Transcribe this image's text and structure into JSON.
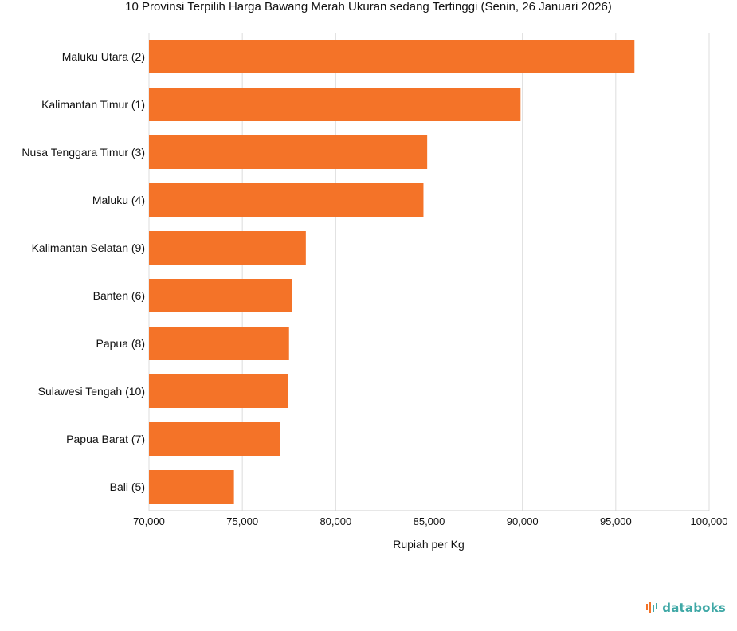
{
  "title": "10 Provinsi Terpilih Harga Bawang Merah Ukuran sedang Tertinggi (Senin, 26 Januari 2026)",
  "brand": {
    "logo_text": "databoks",
    "logo_icon": "databoks-logo-icon"
  },
  "chart_data": {
    "type": "bar",
    "orientation": "horizontal",
    "title": "10 Provinsi Terpilih Harga Bawang Merah Ukuran sedang Tertinggi (Senin, 26 Januari 2026)",
    "xlabel": "Rupiah per Kg",
    "ylabel": "",
    "xlim": [
      70000,
      100000
    ],
    "xticks": [
      70000,
      75000,
      80000,
      85000,
      90000,
      95000,
      100000
    ],
    "xtick_labels": [
      "70,000",
      "75,000",
      "80,000",
      "85,000",
      "90,000",
      "95,000",
      "100,000"
    ],
    "categories": [
      "Maluku Utara (2)",
      "Kalimantan Timur (1)",
      "Nusa Tenggara Timur (3)",
      "Maluku (4)",
      "Kalimantan Selatan (9)",
      "Banten (6)",
      "Papua (8)",
      "Sulawesi Tengah (10)",
      "Papua Barat (7)",
      "Bali (5)"
    ],
    "values": [
      96000,
      89900,
      84900,
      84700,
      78400,
      77650,
      77500,
      77450,
      77000,
      74550
    ],
    "bar_color": "#f47328",
    "grid": true
  }
}
